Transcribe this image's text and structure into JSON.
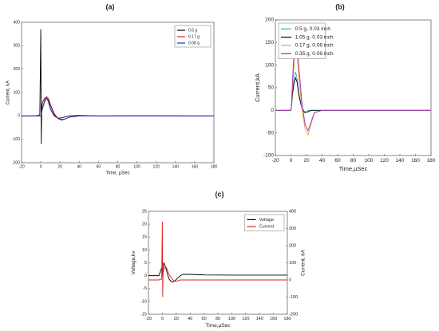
{
  "chart_data": [
    {
      "type": "line",
      "title": "(a)",
      "x_label": "Time, µSec",
      "y_label": "Current, kA",
      "x": [
        -20,
        -5,
        -1,
        0,
        0.5,
        1,
        2,
        4,
        6,
        8,
        10,
        14,
        18,
        22,
        26,
        30,
        40,
        60,
        100,
        180
      ],
      "series": [
        {
          "name": "0.5 g",
          "color": "#000000",
          "values": [
            0,
            0,
            5,
            370,
            -120,
            40,
            60,
            75,
            80,
            60,
            30,
            0,
            -10,
            -8,
            -3,
            0,
            2,
            0,
            1,
            0
          ]
        },
        {
          "name": "0.17 g",
          "color": "#e02020",
          "values": [
            0,
            0,
            0,
            0,
            10,
            20,
            40,
            65,
            82,
            75,
            50,
            10,
            -10,
            -15,
            -12,
            -5,
            0,
            0,
            0,
            0
          ]
        },
        {
          "name": "0.08 g",
          "color": "#2030d0",
          "values": [
            0,
            0,
            0,
            0,
            5,
            15,
            35,
            60,
            75,
            70,
            45,
            5,
            -12,
            -18,
            -12,
            -5,
            0,
            0,
            0,
            0
          ]
        }
      ],
      "xlim": [
        -20,
        180
      ],
      "xticks": [
        -20,
        0,
        20,
        40,
        60,
        80,
        100,
        120,
        140,
        160,
        180
      ],
      "ylim": [
        -200,
        400
      ],
      "yticks": [
        -200,
        -100,
        0,
        100,
        200,
        300,
        400
      ],
      "legend": "upper right"
    },
    {
      "type": "line",
      "title": "(b)",
      "x_label": "Time,µSec",
      "y_label": "Current,kA",
      "x": [
        -20,
        -5,
        -1,
        0,
        0.5,
        1,
        2,
        4,
        6,
        8,
        10,
        14,
        18,
        22,
        26,
        30,
        40,
        60,
        100,
        180
      ],
      "series": [
        {
          "name": "0.5 g, 0.03 inch",
          "color": "#3fa9d4",
          "values": [
            0,
            0,
            0,
            0,
            5,
            15,
            40,
            70,
            85,
            70,
            40,
            5,
            -5,
            0,
            0,
            0,
            0,
            0,
            0,
            0
          ]
        },
        {
          "name": "1.05 g, 0.03 inch",
          "color": "#000000",
          "values": [
            0,
            0,
            0,
            0,
            5,
            15,
            35,
            60,
            72,
            62,
            35,
            5,
            -5,
            -3,
            0,
            0,
            0,
            0,
            0,
            0
          ]
        },
        {
          "name": "0.17 g, 0.06 inch",
          "color": "#e8a33a",
          "values": [
            0,
            0,
            0,
            0,
            5,
            20,
            50,
            100,
            135,
            120,
            75,
            5,
            -40,
            -55,
            -30,
            -5,
            0,
            0,
            0,
            0
          ]
        },
        {
          "name": "0.35 g, 0.06 inch",
          "color": "#9b30c0",
          "values": [
            0,
            0,
            0,
            0,
            5,
            25,
            65,
            130,
            168,
            150,
            100,
            20,
            -30,
            -45,
            -25,
            -5,
            0,
            0,
            0,
            0
          ]
        }
      ],
      "xlim": [
        -20,
        180
      ],
      "xticks": [
        -20,
        0,
        20,
        40,
        60,
        80,
        100,
        120,
        140,
        160,
        180
      ],
      "ylim": [
        -100,
        200
      ],
      "yticks": [
        -100,
        -50,
        0,
        50,
        100,
        150,
        200
      ],
      "legend": "upper left"
    },
    {
      "type": "line",
      "title": "(c)",
      "x_label": "Time,µSec",
      "y_label": "Voltage,kv",
      "y2_label": "Current, kA",
      "x": [
        -20,
        -5,
        -1,
        0,
        0.5,
        1,
        2,
        4,
        6,
        8,
        10,
        14,
        18,
        22,
        26,
        30,
        40,
        60,
        100,
        180
      ],
      "series": [
        {
          "name": "Voltage",
          "color": "#000000",
          "values": [
            0,
            0,
            3,
            1,
            0,
            3,
            5,
            4,
            2,
            0,
            -1.5,
            -2.5,
            -2,
            -1,
            0,
            0.5,
            0.5,
            0.3,
            0.2,
            0.2
          ]
        },
        {
          "name": "Current",
          "color": "#e02020",
          "axis": "y2",
          "values": [
            0,
            0,
            5,
            340,
            -100,
            40,
            60,
            80,
            70,
            50,
            30,
            5,
            -8,
            -5,
            0,
            0,
            0,
            0,
            0,
            0
          ]
        }
      ],
      "xlim": [
        -20,
        180
      ],
      "xticks": [
        -20,
        0,
        20,
        40,
        60,
        80,
        100,
        120,
        140,
        160,
        180
      ],
      "ylim": [
        -15,
        25
      ],
      "yticks": [
        -15,
        -10,
        -5,
        0,
        5,
        10,
        15,
        20,
        25
      ],
      "y2lim": [
        -200,
        400
      ],
      "y2ticks": [
        -200,
        -100,
        0,
        100,
        200,
        300,
        400
      ],
      "legend": "upper right"
    }
  ]
}
